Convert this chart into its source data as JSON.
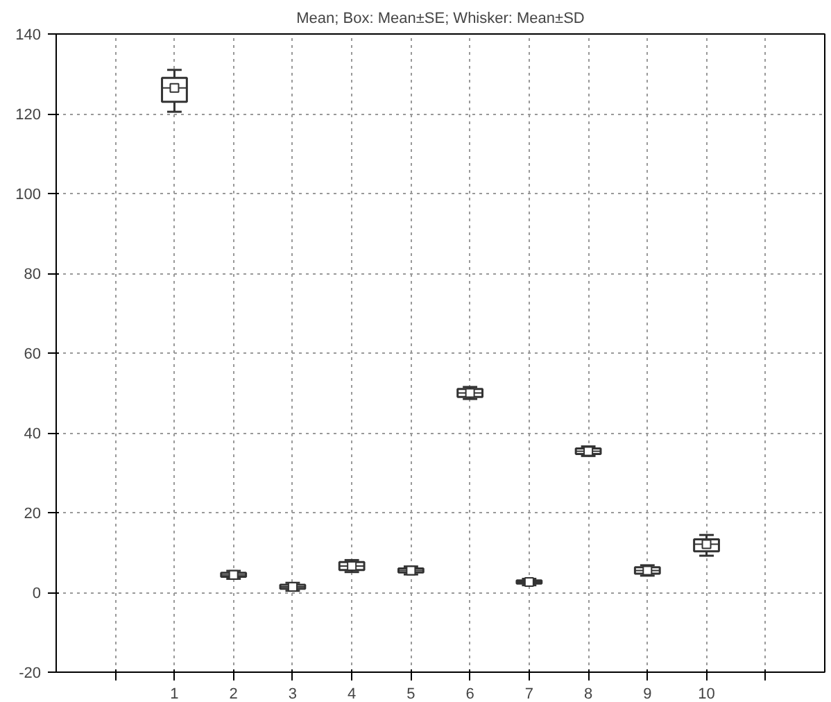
{
  "chart_data": {
    "type": "box",
    "title": "Mean; Box: Mean±SE; Whisker: Mean±SD",
    "categories": [
      "1",
      "2",
      "3",
      "4",
      "5",
      "6",
      "7",
      "8",
      "9",
      "10"
    ],
    "boxes": [
      {
        "low": 120.5,
        "q1": 123,
        "median": 126.5,
        "q3": 129,
        "high": 131,
        "mean": 126.5
      },
      {
        "low": 3.4,
        "q1": 3.9,
        "median": 4.4,
        "q3": 4.9,
        "high": 5.4,
        "mean": 4.4
      },
      {
        "low": 0.4,
        "q1": 0.9,
        "median": 1.4,
        "q3": 1.9,
        "high": 2.4,
        "mean": 1.4
      },
      {
        "low": 5.1,
        "q1": 5.6,
        "median": 6.6,
        "q3": 7.6,
        "high": 8.1,
        "mean": 6.6
      },
      {
        "low": 4.5,
        "q1": 5.0,
        "median": 5.5,
        "q3": 6.0,
        "high": 6.5,
        "mean": 5.5
      },
      {
        "low": 48.5,
        "q1": 49,
        "median": 50,
        "q3": 51,
        "high": 51.5,
        "mean": 50
      },
      {
        "low": 1.8,
        "q1": 2.2,
        "median": 2.6,
        "q3": 3.0,
        "high": 3.4,
        "mean": 2.6
      },
      {
        "low": 34.2,
        "q1": 34.7,
        "median": 35.4,
        "q3": 36.1,
        "high": 36.6,
        "mean": 35.4
      },
      {
        "low": 4.2,
        "q1": 4.7,
        "median": 5.5,
        "q3": 6.3,
        "high": 6.8,
        "mean": 5.5
      },
      {
        "low": 9.2,
        "q1": 10.3,
        "median": 12.1,
        "q3": 13.3,
        "high": 14.4,
        "mean": 12.1
      }
    ],
    "color": "#ffffff",
    "ylim": [
      -20,
      140
    ],
    "yticks": [
      -20,
      0,
      20,
      40,
      60,
      80,
      100,
      120,
      140
    ],
    "grid": true
  }
}
